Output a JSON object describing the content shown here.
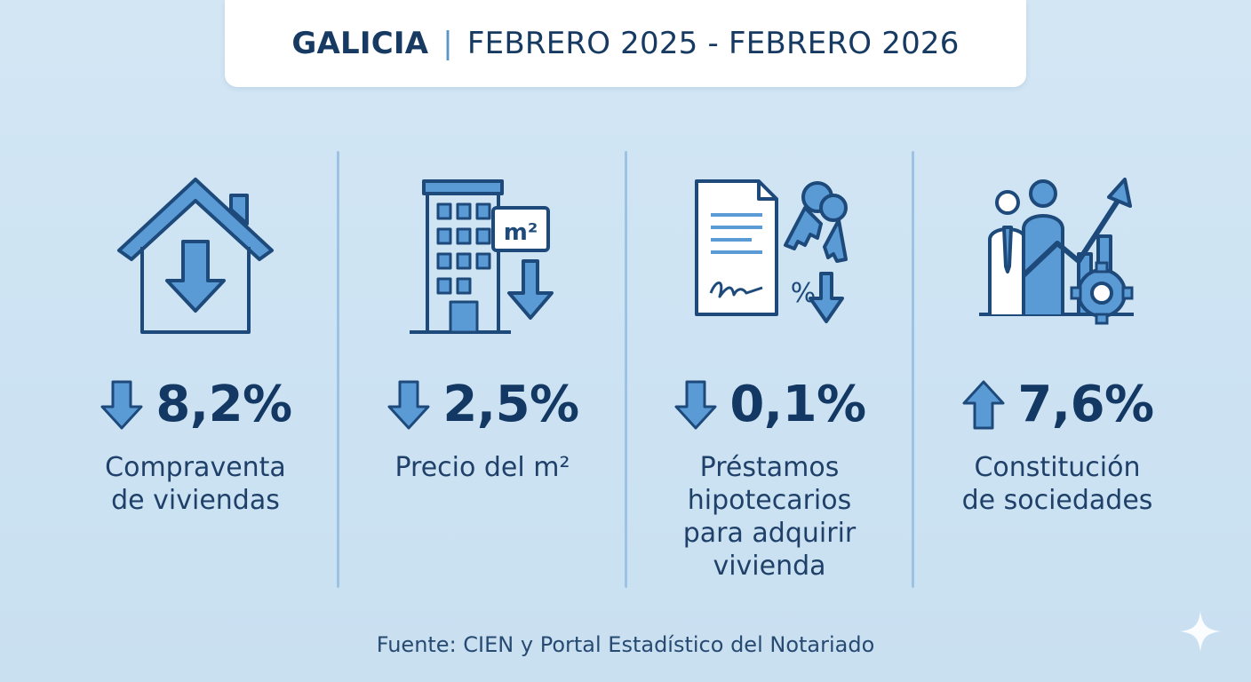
{
  "header": {
    "region": "GALICIA",
    "separator": "|",
    "period": "FEBRERO 2025 - FEBRERO 2026"
  },
  "colors": {
    "primary_dark": "#133863",
    "icon_fill": "#5b9bd5",
    "icon_stroke": "#1d4a7a",
    "background": "#cde3f3",
    "divider": "#9cc3e3"
  },
  "stats": [
    {
      "icon": "house-down-arrow-icon",
      "direction": "down",
      "value": "8,2%",
      "label_lines": [
        "Compraventa",
        "de viviendas"
      ]
    },
    {
      "icon": "building-m2-down-icon",
      "direction": "down",
      "value": "2,5%",
      "label_lines": [
        "Precio del m²"
      ]
    },
    {
      "icon": "mortgage-document-keys-icon",
      "direction": "down",
      "value": "0,1%",
      "label_lines": [
        "Préstamos",
        "hipotecarios",
        "para adquirir",
        "vivienda"
      ]
    },
    {
      "icon": "business-growth-gear-icon",
      "direction": "up",
      "value": "7,6%",
      "label_lines": [
        "Constitución",
        "de sociedades"
      ]
    }
  ],
  "icon_texts": {
    "m2_sign": "m²",
    "percent": "%"
  },
  "source": "Fuente: CIEN y Portal Estadístico del Notariado"
}
